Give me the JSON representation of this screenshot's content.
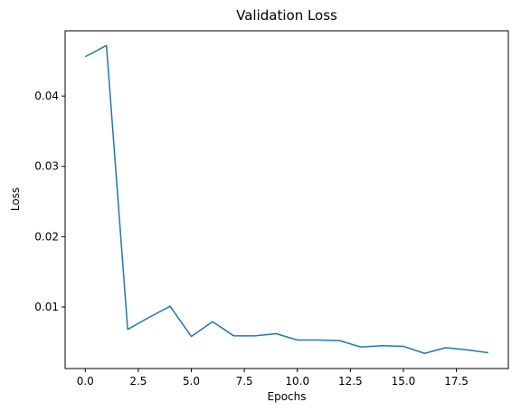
{
  "chart_data": {
    "type": "line",
    "title": "Validation Loss",
    "xlabel": "Epochs",
    "ylabel": "Loss",
    "xlim": [
      -0.95,
      19.95
    ],
    "ylim": [
      0.00124,
      0.04929
    ],
    "x_ticks": [
      0.0,
      2.5,
      5.0,
      7.5,
      10.0,
      12.5,
      15.0,
      17.5
    ],
    "x_tick_labels": [
      "0.0",
      "2.5",
      "5.0",
      "7.5",
      "10.0",
      "12.5",
      "15.0",
      "17.5"
    ],
    "y_ticks": [
      0.01,
      0.02,
      0.03,
      0.04
    ],
    "y_tick_labels": [
      "0.01",
      "0.02",
      "0.03",
      "0.04"
    ],
    "grid": false,
    "line_color": "#1f77b4",
    "series": [
      {
        "x": [
          0,
          1,
          2,
          3,
          4,
          5,
          6,
          7,
          8,
          9,
          10,
          11,
          12,
          13,
          14,
          15,
          16,
          17,
          18,
          19
        ],
        "values": [
          0.0456,
          0.0472,
          0.0068,
          0.0085,
          0.0101,
          0.0058,
          0.0079,
          0.0059,
          0.0059,
          0.0062,
          0.0053,
          0.0053,
          0.0052,
          0.0043,
          0.0045,
          0.0044,
          0.0034,
          0.0042,
          0.0039,
          0.0035
        ]
      }
    ]
  }
}
